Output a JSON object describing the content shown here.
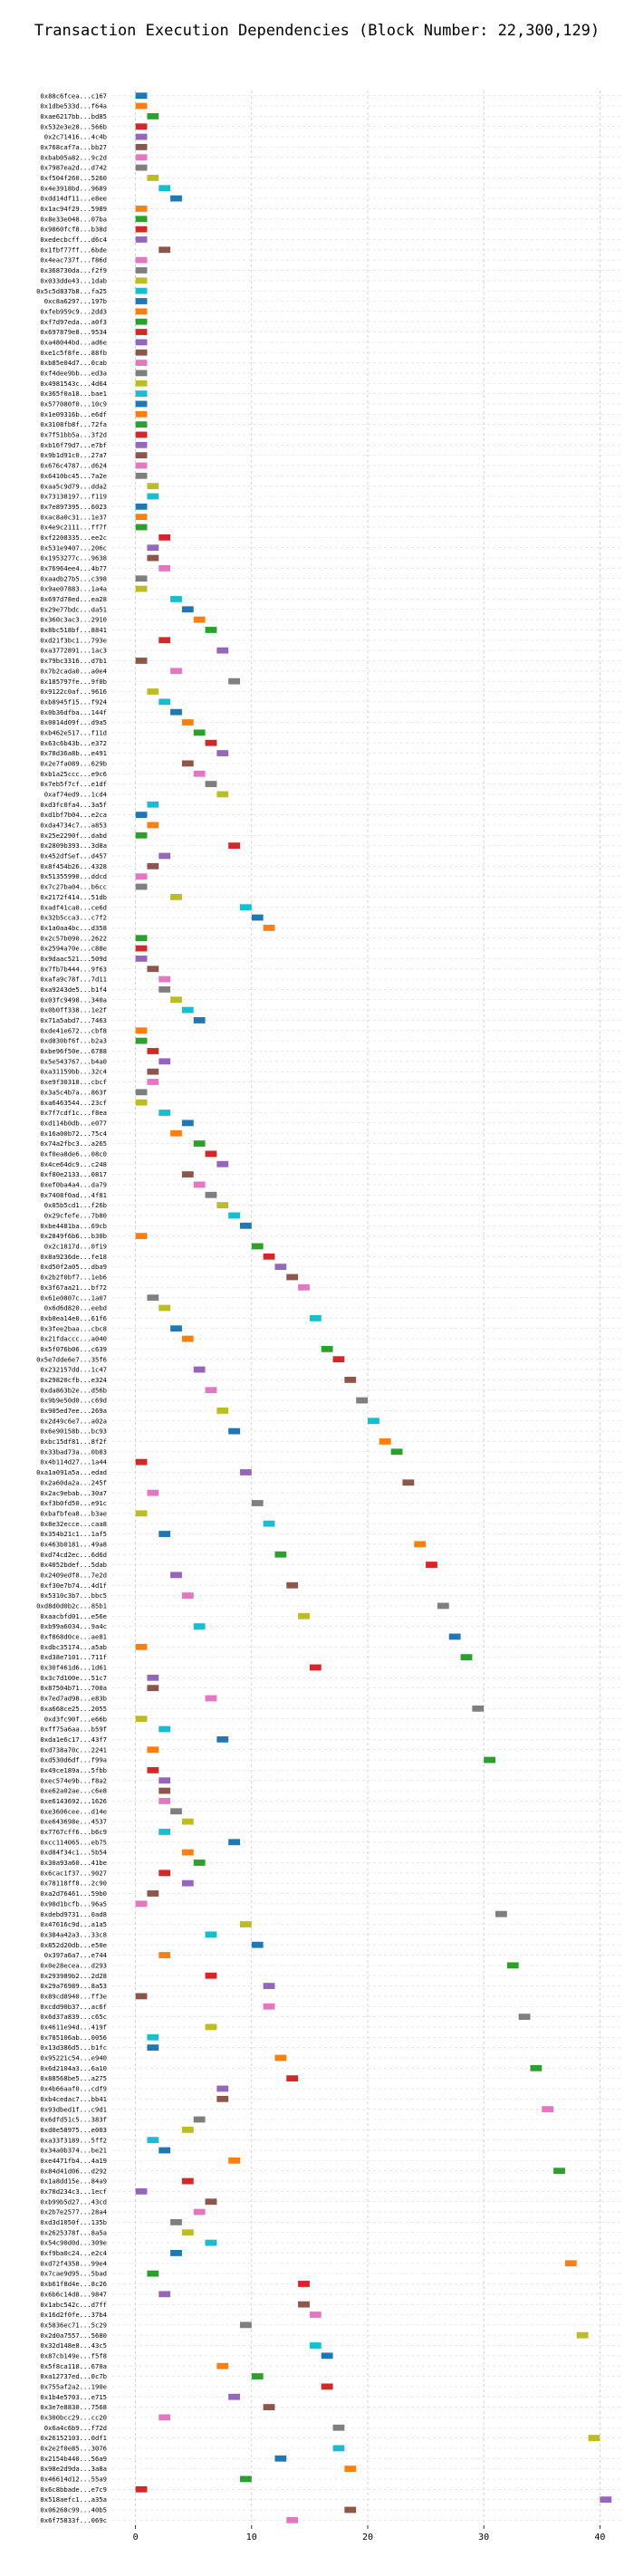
{
  "chart_data": {
    "type": "gantt",
    "title": "Transaction Execution Dependencies (Block Number: 22,300,129)",
    "xlabel": "",
    "ylabel": "",
    "xlim": [
      -2,
      42
    ],
    "xticks": [
      0,
      10,
      20,
      30,
      40
    ],
    "grid": "dashed",
    "colors": [
      "#1f77b4",
      "#ff7f0e",
      "#2ca02c",
      "#d62728",
      "#9467bd",
      "#8c564b",
      "#e377c2",
      "#7f7f7f",
      "#bcbd22",
      "#17becf"
    ],
    "transactions": [
      {
        "hash": "0x88c6fcea...c167",
        "start": 0
      },
      {
        "hash": "0x1dbe533d...f64a",
        "start": 0
      },
      {
        "hash": "0xae6217bb...bd85",
        "start": 1
      },
      {
        "hash": "0x532e3e28...566b",
        "start": 0
      },
      {
        "hash": "0x2c71416...4c4b",
        "start": 0
      },
      {
        "hash": "0x768caf7a...bb27",
        "start": 0
      },
      {
        "hash": "0xbab05a82...9c2d",
        "start": 0
      },
      {
        "hash": "0x7987ea2d...d742",
        "start": 0
      },
      {
        "hash": "0xf504f260...5260",
        "start": 1
      },
      {
        "hash": "0x4e3918bd...9689",
        "start": 2
      },
      {
        "hash": "0xdd14df11...e8ee",
        "start": 3
      },
      {
        "hash": "0x1ac94f29...5989",
        "start": 0
      },
      {
        "hash": "0x8e33e048...07ba",
        "start": 0
      },
      {
        "hash": "0x9860fcf8...b38d",
        "start": 0
      },
      {
        "hash": "0xedecbcff...d6c4",
        "start": 0
      },
      {
        "hash": "0x1fbf77ff...6bde",
        "start": 2
      },
      {
        "hash": "0x4eac737f...f86d",
        "start": 0
      },
      {
        "hash": "0x368730da...f2f9",
        "start": 0
      },
      {
        "hash": "0x033dde43...1dab",
        "start": 0
      },
      {
        "hash": "0x5c5d837b8...fa25",
        "start": 0
      },
      {
        "hash": "0xc8a6297...197b",
        "start": 0
      },
      {
        "hash": "0xfeb959c9...2dd3",
        "start": 0
      },
      {
        "hash": "0xf7d97eda...a0f3",
        "start": 0
      },
      {
        "hash": "0x697879e8...9534",
        "start": 0
      },
      {
        "hash": "0xa48044bd...ad6e",
        "start": 0
      },
      {
        "hash": "0xe1c5f8fe...88fb",
        "start": 0
      },
      {
        "hash": "0xb85e04d7...0cab",
        "start": 0
      },
      {
        "hash": "0xf4dee9bb...ed3a",
        "start": 0
      },
      {
        "hash": "0x4981543c...4d64",
        "start": 0
      },
      {
        "hash": "0x365f0a18...bae1",
        "start": 0
      },
      {
        "hash": "0x577080f0...10c9",
        "start": 0
      },
      {
        "hash": "0x1e09316b...e6df",
        "start": 0
      },
      {
        "hash": "0x3108fb8f...72fa",
        "start": 0
      },
      {
        "hash": "0x7f51bb5a...3f2d",
        "start": 0
      },
      {
        "hash": "0xb16f79d7...e7bf",
        "start": 0
      },
      {
        "hash": "0x9b1d91c0...27a7",
        "start": 0
      },
      {
        "hash": "0x676c4787...d624",
        "start": 0
      },
      {
        "hash": "0x6410bc45...7a2e",
        "start": 0
      },
      {
        "hash": "0xaa5c9d79...dda2",
        "start": 1
      },
      {
        "hash": "0x73138197...f119",
        "start": 1
      },
      {
        "hash": "0x7e897395...6023",
        "start": 0
      },
      {
        "hash": "0xac8a0c31...1e37",
        "start": 0
      },
      {
        "hash": "0x4e9c2111...ff7f",
        "start": 0
      },
      {
        "hash": "0xf2208335...ee2c",
        "start": 2
      },
      {
        "hash": "0x531e9407...206c",
        "start": 1
      },
      {
        "hash": "0x1953277c...9638",
        "start": 1
      },
      {
        "hash": "0x76964ee4...4b77",
        "start": 2
      },
      {
        "hash": "0xaadb27b5...c398",
        "start": 0
      },
      {
        "hash": "0x9ae07883...1a4a",
        "start": 0
      },
      {
        "hash": "0x697d78ed...ea28",
        "start": 3
      },
      {
        "hash": "0x29e77bdc...da51",
        "start": 4
      },
      {
        "hash": "0x360c3ac3...2910",
        "start": 5
      },
      {
        "hash": "0x8bc518bf...8841",
        "start": 6
      },
      {
        "hash": "0xd21f3bc1...793e",
        "start": 2
      },
      {
        "hash": "0xa3772891...1ac3",
        "start": 7
      },
      {
        "hash": "0x79bc3316...d7b1",
        "start": 0
      },
      {
        "hash": "0x7b2cada0...a0e4",
        "start": 3
      },
      {
        "hash": "0x185797fe...9f0b",
        "start": 8
      },
      {
        "hash": "0x9122c0af...9616",
        "start": 1
      },
      {
        "hash": "0xb8945f15...f924",
        "start": 2
      },
      {
        "hash": "0x0b36dfba...144f",
        "start": 3
      },
      {
        "hash": "0x0014d09f...d9a5",
        "start": 4
      },
      {
        "hash": "0xb462e517...f11d",
        "start": 5
      },
      {
        "hash": "0x63c6b43b...e372",
        "start": 6
      },
      {
        "hash": "0x78d36a8b...e491",
        "start": 7
      },
      {
        "hash": "0x2e7fa089...629b",
        "start": 4
      },
      {
        "hash": "0xb1a25ccc...e9c6",
        "start": 5
      },
      {
        "hash": "0x7eb5f7cf...e1df",
        "start": 6
      },
      {
        "hash": "0xaf74ed9...1cd4",
        "start": 7
      },
      {
        "hash": "0xd3fc0fa4...3a5f",
        "start": 1
      },
      {
        "hash": "0xd1bf7b04...e2ca",
        "start": 0
      },
      {
        "hash": "0xda4734c7...a853",
        "start": 1
      },
      {
        "hash": "0x25e2290f...dabd",
        "start": 0
      },
      {
        "hash": "0x2809b393...3d8a",
        "start": 8
      },
      {
        "hash": "0x452dfSef...d457",
        "start": 2
      },
      {
        "hash": "0x8f454b26...4328",
        "start": 1
      },
      {
        "hash": "0x51355990...ddcd",
        "start": 0
      },
      {
        "hash": "0x7c27ba04...b6cc",
        "start": 0
      },
      {
        "hash": "0x2172f414...51db",
        "start": 3
      },
      {
        "hash": "0xadf41ca0...ce6d",
        "start": 9
      },
      {
        "hash": "0x32b5cca3...c7f2",
        "start": 10
      },
      {
        "hash": "0x1a0aa4bc...d358",
        "start": 11
      },
      {
        "hash": "0x2c57b090...2622",
        "start": 0
      },
      {
        "hash": "0x2594a70e...c88e",
        "start": 0
      },
      {
        "hash": "0x9daac521...509d",
        "start": 0
      },
      {
        "hash": "0x7fb7b444...9f63",
        "start": 1
      },
      {
        "hash": "0xafa9c78f...7d11",
        "start": 2
      },
      {
        "hash": "0xa9243de5...b1f4",
        "start": 2
      },
      {
        "hash": "0x03fc9498...340a",
        "start": 3
      },
      {
        "hash": "0x0b0ff338...1e2f",
        "start": 4
      },
      {
        "hash": "0x71a5abd7...7463",
        "start": 5
      },
      {
        "hash": "0xde41e672...cbf8",
        "start": 0
      },
      {
        "hash": "0xd830bf6f...b2a3",
        "start": 0
      },
      {
        "hash": "0xbe96f50e...6788",
        "start": 1
      },
      {
        "hash": "0x5e543767...b4a0",
        "start": 2
      },
      {
        "hash": "0xa31159bb...32c4",
        "start": 1
      },
      {
        "hash": "0xe9f30318...cbcf",
        "start": 1
      },
      {
        "hash": "0x3a5c4b7a...863f",
        "start": 0
      },
      {
        "hash": "0xa6463544...23cf",
        "start": 0
      },
      {
        "hash": "0x7f7cdf1c...f8ea",
        "start": 2
      },
      {
        "hash": "0xd114b0db...e077",
        "start": 4
      },
      {
        "hash": "0x16a00b72...75c4",
        "start": 3
      },
      {
        "hash": "0x74a2fbc3...a265",
        "start": 5
      },
      {
        "hash": "0xf0ea8de6...08c0",
        "start": 6
      },
      {
        "hash": "0x4ce64dc9...c248",
        "start": 7
      },
      {
        "hash": "0xf80e2133...0817",
        "start": 4
      },
      {
        "hash": "0xef0ba4a4...da79",
        "start": 5
      },
      {
        "hash": "0x7408f0ad...4f81",
        "start": 6
      },
      {
        "hash": "0x05b5cd1...f26b",
        "start": 7
      },
      {
        "hash": "0x29cfefe...7b80",
        "start": 8
      },
      {
        "hash": "0xbe4481ba...69cb",
        "start": 9
      },
      {
        "hash": "0x2849f6b6...b30b",
        "start": 0
      },
      {
        "hash": "0x2c1817d...0f19",
        "start": 10
      },
      {
        "hash": "0x8a9236de...fe18",
        "start": 11
      },
      {
        "hash": "0xd50f2a05...dba9",
        "start": 12
      },
      {
        "hash": "0x2b2f0bf7...1eb6",
        "start": 13
      },
      {
        "hash": "0x3f67aa21...bf72",
        "start": 14
      },
      {
        "hash": "0x61e0807c...1a07",
        "start": 1
      },
      {
        "hash": "0x6d6d820...eebd",
        "start": 2
      },
      {
        "hash": "0xb0ea14e0...61f6",
        "start": 15
      },
      {
        "hash": "0x3fee2baa...cbc8",
        "start": 3
      },
      {
        "hash": "0x21fdaccc...a040",
        "start": 4
      },
      {
        "hash": "0x5f076b06...c639",
        "start": 16
      },
      {
        "hash": "0x5e7dde6e7...35f6",
        "start": 17
      },
      {
        "hash": "0x232157dd...1c47",
        "start": 5
      },
      {
        "hash": "0x29820cfb...e324",
        "start": 18
      },
      {
        "hash": "0xda863b2e...d56b",
        "start": 6
      },
      {
        "hash": "0x9b9e50d0...c69d",
        "start": 19
      },
      {
        "hash": "0x905ed7ee...269a",
        "start": 7
      },
      {
        "hash": "0x2d49c6e7...a02a",
        "start": 20
      },
      {
        "hash": "0x6e90158b...bc93",
        "start": 8
      },
      {
        "hash": "0xbc15df81...8f2f",
        "start": 21
      },
      {
        "hash": "0x33bad73a...0b83",
        "start": 22
      },
      {
        "hash": "0x4b114d27...1a44",
        "start": 0
      },
      {
        "hash": "0xa1a091a5a...edad",
        "start": 9
      },
      {
        "hash": "0x2a60da2a...245f",
        "start": 23
      },
      {
        "hash": "0x2ac9ebab...30a7",
        "start": 1
      },
      {
        "hash": "0xf3b0fd50...e91c",
        "start": 10
      },
      {
        "hash": "0xbafbfea8...b3ae",
        "start": 0
      },
      {
        "hash": "0x8e32ecce...caa8",
        "start": 11
      },
      {
        "hash": "0x354b21c1...1af5",
        "start": 2
      },
      {
        "hash": "0x463b0181...49a8",
        "start": 24
      },
      {
        "hash": "0xd74cd2ec...6d6d",
        "start": 12
      },
      {
        "hash": "0x4052bdef...5dab",
        "start": 25
      },
      {
        "hash": "0x2409edf8...7e2d",
        "start": 3
      },
      {
        "hash": "0xf30e7b74...4d1f",
        "start": 13
      },
      {
        "hash": "0x5310c3b7...bbc5",
        "start": 4
      },
      {
        "hash": "0xd8d0d0b2c...85b1",
        "start": 26
      },
      {
        "hash": "0xaacbfd01...e56e",
        "start": 14
      },
      {
        "hash": "0xb99a6034...9a4c",
        "start": 5
      },
      {
        "hash": "0xf868d0ce...ae81",
        "start": 27
      },
      {
        "hash": "0xdbc35174...a5ab",
        "start": 0
      },
      {
        "hash": "0xd38e7101...711f",
        "start": 28
      },
      {
        "hash": "0x30f461d6...1d61",
        "start": 15
      },
      {
        "hash": "0x3c7d100e...51c7",
        "start": 1
      },
      {
        "hash": "0x87504b71...700a",
        "start": 1
      },
      {
        "hash": "0x7ed7ad98...e83b",
        "start": 6
      },
      {
        "hash": "0xa668ce25...2055",
        "start": 29
      },
      {
        "hash": "0xd3fc90f...e66b",
        "start": 0
      },
      {
        "hash": "0xff75a6aa...b59f",
        "start": 2
      },
      {
        "hash": "0xda1e6c17...43f7",
        "start": 7
      },
      {
        "hash": "0xd738a70c...2241",
        "start": 1
      },
      {
        "hash": "0xd530d6df...f99a",
        "start": 30
      },
      {
        "hash": "0x49ce189a...5fbb",
        "start": 1
      },
      {
        "hash": "0xec574e9b...f8a2",
        "start": 2
      },
      {
        "hash": "0xe62a02ae...c6e8",
        "start": 2
      },
      {
        "hash": "0xe6143692...1626",
        "start": 2
      },
      {
        "hash": "0xe3606cee...d14e",
        "start": 3
      },
      {
        "hash": "0xe643698e...4537",
        "start": 4
      },
      {
        "hash": "0x7767cff6...b6c9",
        "start": 2
      },
      {
        "hash": "0xcc114065...eb75",
        "start": 8
      },
      {
        "hash": "0xd84f34c1...5b54",
        "start": 4
      },
      {
        "hash": "0x30a93a60...41be",
        "start": 5
      },
      {
        "hash": "0x6cac1f37...9027",
        "start": 2
      },
      {
        "hash": "0x78118ff8...2c90",
        "start": 4
      },
      {
        "hash": "0xa2d76461...59b0",
        "start": 1
      },
      {
        "hash": "0x98d1bcfb...96a5",
        "start": 0
      },
      {
        "hash": "0xdebd9731...0ad8",
        "start": 31
      },
      {
        "hash": "0x47616c9d...a1a5",
        "start": 9
      },
      {
        "hash": "0x384a42a3...33c8",
        "start": 6
      },
      {
        "hash": "0x852d20db...e50e",
        "start": 10
      },
      {
        "hash": "0x397a6a7...e744",
        "start": 2
      },
      {
        "hash": "0x0e28ecea...d293",
        "start": 32
      },
      {
        "hash": "0x293989b2...2d28",
        "start": 6
      },
      {
        "hash": "0x29a76989...8a53",
        "start": 11
      },
      {
        "hash": "0x89cd8940...ff3e",
        "start": 0
      },
      {
        "hash": "0xcdd90b37...ac6f",
        "start": 11
      },
      {
        "hash": "0x6d37a839...c65c",
        "start": 33
      },
      {
        "hash": "0x4611e94d...419f",
        "start": 6
      },
      {
        "hash": "0x785106ab...0056",
        "start": 1
      },
      {
        "hash": "0x13d386d5...b1fc",
        "start": 1
      },
      {
        "hash": "0x95221c54...e940",
        "start": 12
      },
      {
        "hash": "0x6d2104a3...6a10",
        "start": 34
      },
      {
        "hash": "0x88568be5...a275",
        "start": 13
      },
      {
        "hash": "0x4b66aaf0...cdf9",
        "start": 7
      },
      {
        "hash": "0xb4cedac7...bb41",
        "start": 7
      },
      {
        "hash": "0x93dbed1f...c9d1",
        "start": 35
      },
      {
        "hash": "0x6dfd51c5...383f",
        "start": 5
      },
      {
        "hash": "0xd0e58975...e003",
        "start": 4
      },
      {
        "hash": "0xa33f3189...5ff2",
        "start": 1
      },
      {
        "hash": "0x34a0b374...be21",
        "start": 2
      },
      {
        "hash": "0xe4471fb4...4a19",
        "start": 8
      },
      {
        "hash": "0x84d41d06...d292",
        "start": 36
      },
      {
        "hash": "0x1a8dd15e...84a9",
        "start": 4
      },
      {
        "hash": "0x78d234c3...1ecf",
        "start": 0
      },
      {
        "hash": "0xb99b5d27...43cd",
        "start": 6
      },
      {
        "hash": "0x2b7e2577...28a4",
        "start": 5
      },
      {
        "hash": "0xd3d1050f...135b",
        "start": 3
      },
      {
        "hash": "0x2625378f...8a5a",
        "start": 4
      },
      {
        "hash": "0x54c90d0d...309e",
        "start": 6
      },
      {
        "hash": "0xf9ba0c24...e2c4",
        "start": 3
      },
      {
        "hash": "0xd72f4358...99e4",
        "start": 37
      },
      {
        "hash": "0x7cae9d95...5bad",
        "start": 1
      },
      {
        "hash": "0xb61f8d4e...8c26",
        "start": 14
      },
      {
        "hash": "0x6b6c14d8...9847",
        "start": 2
      },
      {
        "hash": "0x1abc542c...d7ff",
        "start": 14
      },
      {
        "hash": "0x16d2f0fe...37b4",
        "start": 15
      },
      {
        "hash": "0x5836ec71...5c29",
        "start": 9
      },
      {
        "hash": "0x2d0a7557...5680",
        "start": 38
      },
      {
        "hash": "0x32d148e8...43c5",
        "start": 15
      },
      {
        "hash": "0x87cb149e...f5f8",
        "start": 16
      },
      {
        "hash": "0x5f8ca118...670a",
        "start": 7
      },
      {
        "hash": "0xa12737ed...0c7b",
        "start": 10
      },
      {
        "hash": "0x755af2a2...190e",
        "start": 16
      },
      {
        "hash": "0x1b4e5703...e715",
        "start": 8
      },
      {
        "hash": "0x3e7e8830...7568",
        "start": 11
      },
      {
        "hash": "0x300bcc29...cc20",
        "start": 2
      },
      {
        "hash": "0x6a4c6b9...f72d",
        "start": 17
      },
      {
        "hash": "0x26152103...0df1",
        "start": 39
      },
      {
        "hash": "0x2e2f0e85...3076",
        "start": 17
      },
      {
        "hash": "0x2154b440...56a9",
        "start": 12
      },
      {
        "hash": "0x98e2d9da...3a8a",
        "start": 18
      },
      {
        "hash": "0x46614d12...55a9",
        "start": 9
      },
      {
        "hash": "0x6c8bbade...e7c9",
        "start": 0
      },
      {
        "hash": "0x518aefc1...a35a",
        "start": 40
      },
      {
        "hash": "0x06268c99...40b5",
        "start": 18
      },
      {
        "hash": "0x6f75833f...069c",
        "start": 13
      }
    ]
  }
}
